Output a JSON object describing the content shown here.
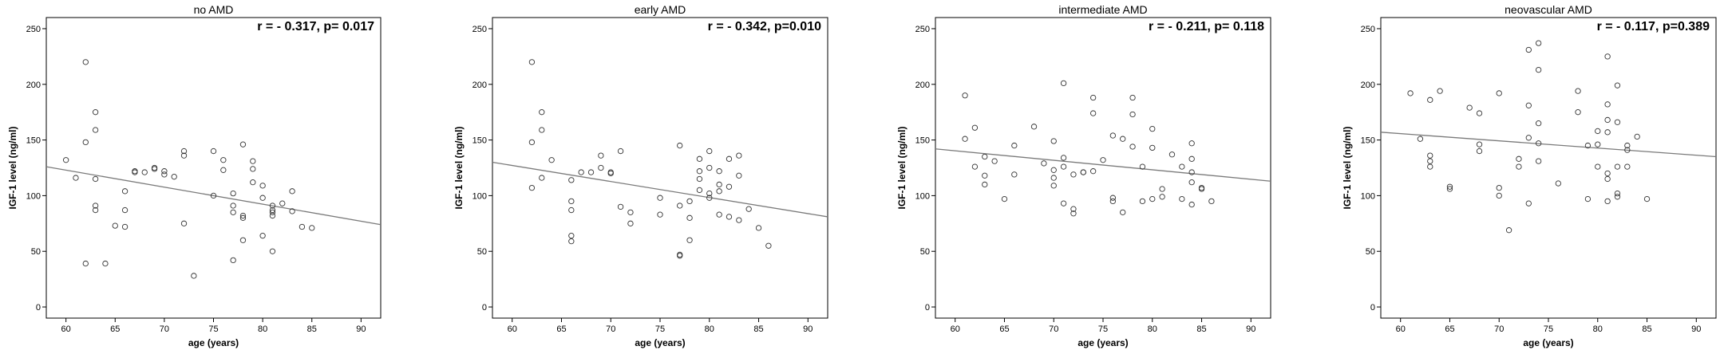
{
  "chart_data": [
    {
      "type": "scatter",
      "title": "no AMD",
      "annotation": "r = - 0.317, p= 0.017",
      "xlabel": "age (years)",
      "ylabel": "IGF-1 level (ng/ml)",
      "xlim": [
        58,
        92
      ],
      "ylim": [
        -10,
        260
      ],
      "xticks": [
        60,
        65,
        70,
        75,
        80,
        85,
        90
      ],
      "yticks": [
        0,
        50,
        100,
        150,
        200,
        250
      ],
      "fit_line": [
        [
          58,
          126
        ],
        [
          92,
          74
        ]
      ],
      "x": [
        60,
        61,
        62,
        62,
        62,
        63,
        63,
        63,
        63,
        63,
        64,
        65,
        66,
        66,
        66,
        67,
        67,
        68,
        69,
        69,
        70,
        70,
        71,
        72,
        72,
        72,
        73,
        75,
        75,
        76,
        76,
        77,
        77,
        77,
        77,
        78,
        78,
        78,
        78,
        79,
        79,
        79,
        80,
        80,
        80,
        81,
        81,
        81,
        81,
        81,
        82,
        83,
        83,
        84,
        85
      ],
      "y": [
        132,
        116,
        220,
        148,
        39,
        175,
        159,
        115,
        91,
        87,
        39,
        73,
        104,
        87,
        72,
        122,
        121,
        121,
        125,
        124,
        122,
        119,
        117,
        140,
        136,
        75,
        28,
        140,
        100,
        132,
        123,
        102,
        91,
        85,
        42,
        146,
        82,
        80,
        60,
        131,
        124,
        112,
        109,
        98,
        64,
        91,
        87,
        85,
        82,
        50,
        93,
        104,
        86,
        72,
        71
      ]
    },
    {
      "type": "scatter",
      "title": "early AMD",
      "annotation": "r = - 0.342, p=0.010",
      "xlabel": "age (years)",
      "ylabel": "IGF-1 level (ng/ml)",
      "xlim": [
        58,
        92
      ],
      "ylim": [
        -10,
        260
      ],
      "xticks": [
        60,
        65,
        70,
        75,
        80,
        85,
        90
      ],
      "yticks": [
        0,
        50,
        100,
        150,
        200,
        250
      ],
      "fit_line": [
        [
          58,
          130
        ],
        [
          92,
          81
        ]
      ],
      "x": [
        62,
        62,
        62,
        63,
        63,
        63,
        64,
        66,
        66,
        66,
        66,
        66,
        67,
        68,
        69,
        69,
        70,
        70,
        71,
        71,
        72,
        72,
        75,
        75,
        77,
        77,
        77,
        77,
        78,
        78,
        78,
        79,
        79,
        79,
        79,
        80,
        80,
        80,
        80,
        81,
        81,
        81,
        81,
        82,
        82,
        82,
        83,
        83,
        83,
        84,
        85,
        86
      ],
      "y": [
        220,
        148,
        107,
        175,
        159,
        116,
        132,
        114,
        95,
        87,
        64,
        59,
        121,
        121,
        136,
        125,
        121,
        120,
        140,
        90,
        85,
        75,
        98,
        83,
        145,
        91,
        47,
        46,
        95,
        80,
        60,
        133,
        122,
        115,
        105,
        140,
        125,
        102,
        98,
        122,
        110,
        104,
        83,
        133,
        108,
        81,
        136,
        118,
        78,
        88,
        71,
        55
      ]
    },
    {
      "type": "scatter",
      "title": "intermediate AMD",
      "annotation": "r = - 0.211, p= 0.118",
      "xlabel": "age (years)",
      "ylabel": "IGF-1 level (ng/ml)",
      "xlim": [
        58,
        92
      ],
      "ylim": [
        -10,
        260
      ],
      "xticks": [
        60,
        65,
        70,
        75,
        80,
        85,
        90
      ],
      "yticks": [
        0,
        50,
        100,
        150,
        200,
        250
      ],
      "fit_line": [
        [
          58,
          142
        ],
        [
          92,
          113
        ]
      ],
      "x": [
        61,
        61,
        62,
        62,
        63,
        63,
        63,
        64,
        65,
        66,
        66,
        68,
        69,
        70,
        70,
        70,
        70,
        71,
        71,
        71,
        71,
        72,
        72,
        72,
        73,
        73,
        74,
        74,
        74,
        75,
        76,
        76,
        76,
        77,
        77,
        78,
        78,
        78,
        79,
        79,
        80,
        80,
        80,
        81,
        81,
        82,
        83,
        83,
        84,
        84,
        84,
        84,
        84,
        85,
        85,
        86
      ],
      "y": [
        190,
        151,
        161,
        126,
        135,
        118,
        110,
        131,
        97,
        145,
        119,
        162,
        129,
        149,
        123,
        116,
        109,
        201,
        134,
        126,
        93,
        119,
        88,
        84,
        121,
        121,
        188,
        174,
        122,
        132,
        154,
        98,
        95,
        151,
        85,
        188,
        173,
        144,
        126,
        95,
        160,
        143,
        97,
        106,
        99,
        137,
        126,
        97,
        147,
        133,
        121,
        112,
        92,
        107,
        106,
        95
      ]
    },
    {
      "type": "scatter",
      "title": "neovascular AMD",
      "annotation": "r = - 0.117, p=0.389",
      "xlabel": "age (years)",
      "ylabel": "IGF-1 level (ng/ml)",
      "xlim": [
        58,
        92
      ],
      "ylim": [
        -10,
        260
      ],
      "xticks": [
        60,
        65,
        70,
        75,
        80,
        85,
        90
      ],
      "yticks": [
        0,
        50,
        100,
        150,
        200,
        250
      ],
      "fit_line": [
        [
          58,
          157
        ],
        [
          92,
          135
        ]
      ],
      "x": [
        61,
        62,
        63,
        63,
        63,
        63,
        64,
        65,
        65,
        67,
        68,
        68,
        68,
        70,
        70,
        70,
        71,
        72,
        72,
        73,
        73,
        73,
        73,
        74,
        74,
        74,
        74,
        74,
        76,
        78,
        78,
        79,
        79,
        80,
        80,
        80,
        81,
        81,
        81,
        81,
        81,
        81,
        81,
        82,
        82,
        82,
        82,
        82,
        83,
        83,
        83,
        84,
        85
      ],
      "y": [
        192,
        151,
        186,
        136,
        131,
        126,
        194,
        108,
        106,
        179,
        174,
        146,
        140,
        192,
        107,
        100,
        69,
        133,
        126,
        231,
        181,
        152,
        93,
        237,
        213,
        165,
        147,
        131,
        111,
        194,
        175,
        145,
        97,
        158,
        146,
        126,
        225,
        182,
        168,
        157,
        120,
        115,
        95,
        199,
        166,
        126,
        102,
        99,
        145,
        141,
        126,
        153,
        97
      ]
    }
  ]
}
